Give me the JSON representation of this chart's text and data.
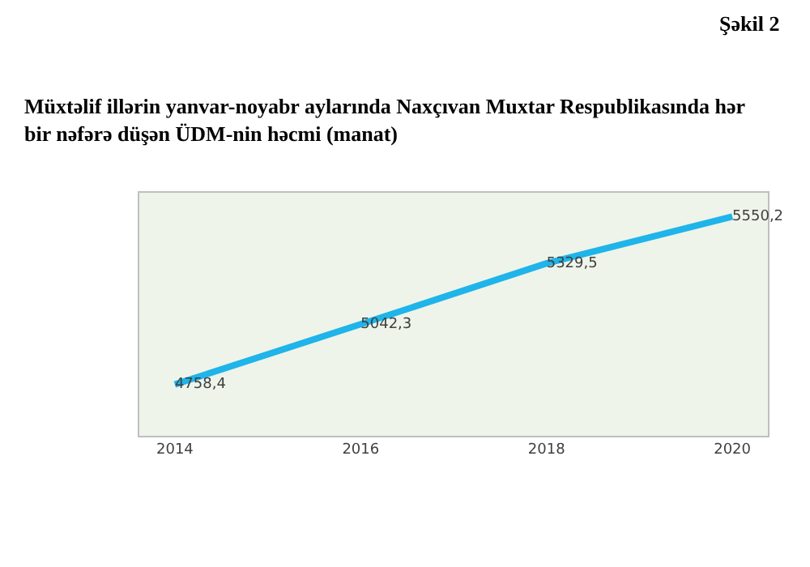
{
  "chart_data": {
    "type": "line",
    "title": "Müxtəlif illərin yanvar-noyabr aylarında Naxçıvan Muxtar Respublikasında hər bir nəfərə düşən ÜDM-nin həcmi (manat)",
    "annotations": [
      "Şəkil 2"
    ],
    "categories": [
      "2014",
      "2016",
      "2018",
      "2020"
    ],
    "values": [
      4758.4,
      5042.3,
      5329.5,
      5550.2
    ],
    "value_labels": [
      "4758,4",
      "5042,3",
      "5329,5",
      "5550,2"
    ],
    "color": "#1fb4ea"
  }
}
